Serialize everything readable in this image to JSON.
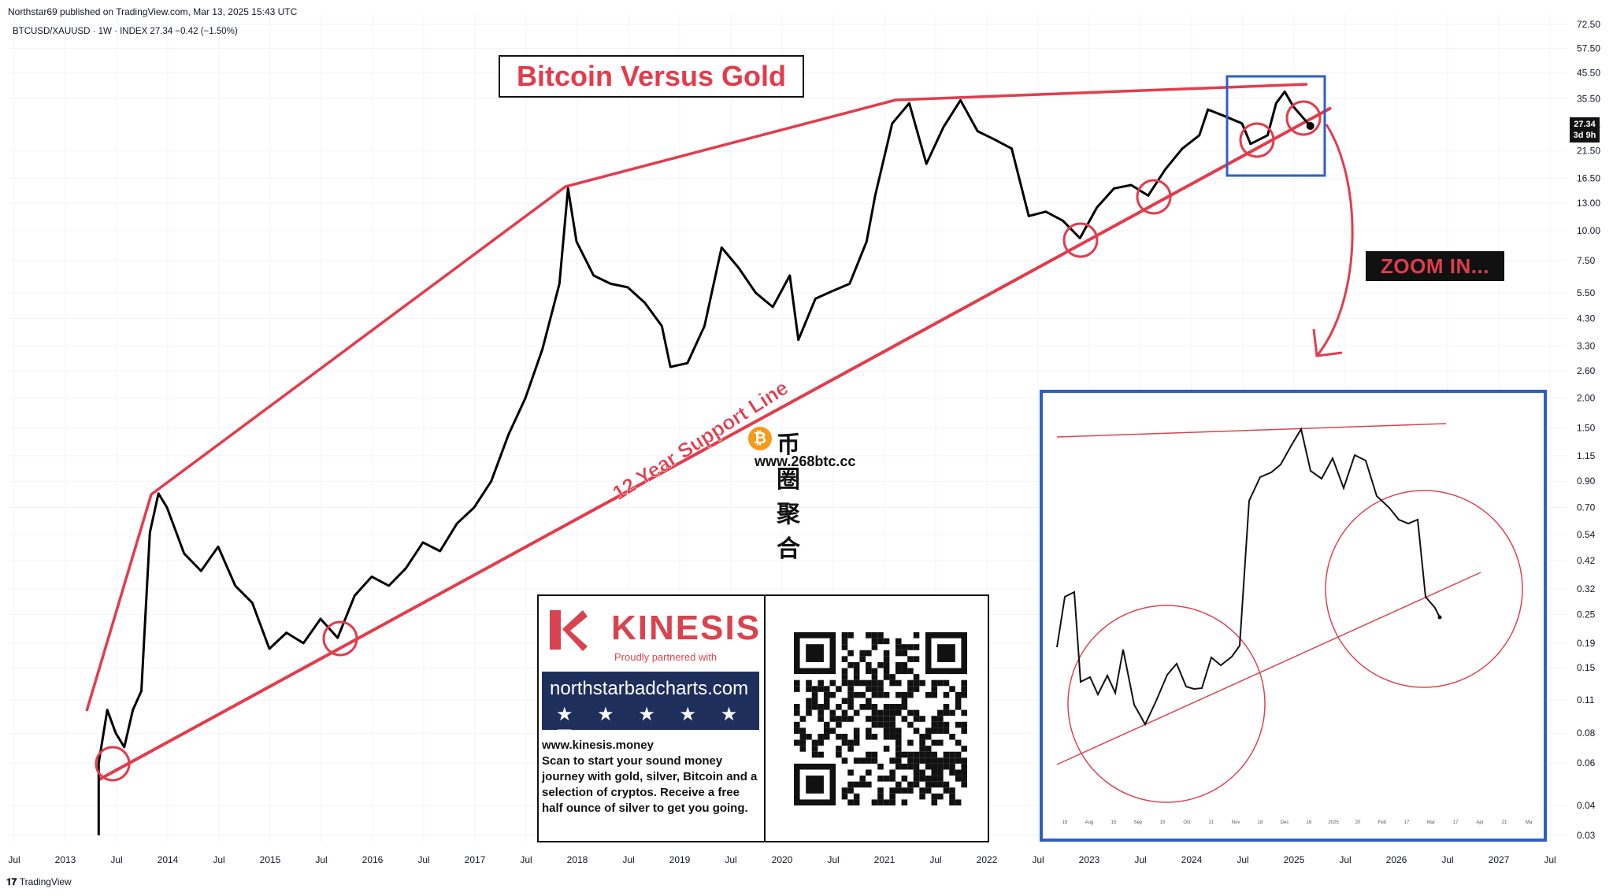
{
  "meta": {
    "published": "Northstar69 published on TradingView.com, Mar 13, 2025 15:43 UTC",
    "symbol_line": "BTCUSD/XAUUSD · 1W · INDEX 27.34 −0.42 (−1.50%)",
    "footer_logo": "TradingView"
  },
  "annotations": {
    "title": "Bitcoin Versus Gold",
    "support_label": "12 Year Support Line",
    "zoom_label": "ZOOM IN...",
    "price_tag_value": "27.34",
    "price_tag_time": "3d 9h"
  },
  "colors": {
    "trendline": "#e23c4c",
    "price": "#000000",
    "highlight_box": "#2e5fc6",
    "zoom_circle": "#d9434f",
    "ad_banner": "#1f2f5c"
  },
  "ad": {
    "brand": "KINESIS",
    "tagline": "Proudly partnered with",
    "banner_url": "northstarbadcharts.com",
    "stars": "★ ★ ★ ★ ★ ☑",
    "website": "www.kinesis.money",
    "body": "Scan to start your sound money journey with gold, silver, Bitcoin and a selection of cryptos. Receive a free half ounce of silver to get you going."
  },
  "watermark": {
    "title": "币圈聚合",
    "url": "www.268btc.cc",
    "coin_icon": "bitcoin-icon"
  },
  "chart_data": {
    "type": "line",
    "title": "Bitcoin Versus Gold",
    "series": [
      {
        "name": "BTCUSD/XAUUSD",
        "scale": "log",
        "points": [
          [
            "2013-05",
            0.03
          ],
          [
            "2013-05",
            0.06
          ],
          [
            "2013-06",
            0.1
          ],
          [
            "2013-07",
            0.08
          ],
          [
            "2013-08",
            0.07
          ],
          [
            "2013-09",
            0.1
          ],
          [
            "2013-10",
            0.12
          ],
          [
            "2013-11",
            0.55
          ],
          [
            "2013-12",
            0.8
          ],
          [
            "2014-01",
            0.7
          ],
          [
            "2014-03",
            0.45
          ],
          [
            "2014-05",
            0.38
          ],
          [
            "2014-07",
            0.48
          ],
          [
            "2014-09",
            0.33
          ],
          [
            "2014-11",
            0.28
          ],
          [
            "2015-01",
            0.18
          ],
          [
            "2015-03",
            0.21
          ],
          [
            "2015-05",
            0.19
          ],
          [
            "2015-07",
            0.24
          ],
          [
            "2015-09",
            0.2
          ],
          [
            "2015-11",
            0.3
          ],
          [
            "2016-01",
            0.36
          ],
          [
            "2016-03",
            0.33
          ],
          [
            "2016-05",
            0.39
          ],
          [
            "2016-07",
            0.5
          ],
          [
            "2016-09",
            0.46
          ],
          [
            "2016-11",
            0.6
          ],
          [
            "2017-01",
            0.7
          ],
          [
            "2017-03",
            0.9
          ],
          [
            "2017-05",
            1.4
          ],
          [
            "2017-07",
            2.0
          ],
          [
            "2017-09",
            3.2
          ],
          [
            "2017-11",
            6.0
          ],
          [
            "2017-12",
            15.0
          ],
          [
            "2018-01",
            9.0
          ],
          [
            "2018-03",
            6.5
          ],
          [
            "2018-05",
            6.0
          ],
          [
            "2018-07",
            5.8
          ],
          [
            "2018-09",
            5.0
          ],
          [
            "2018-11",
            4.0
          ],
          [
            "2018-12",
            2.7
          ],
          [
            "2019-02",
            2.8
          ],
          [
            "2019-04",
            4.0
          ],
          [
            "2019-06",
            8.5
          ],
          [
            "2019-08",
            7.0
          ],
          [
            "2019-10",
            5.5
          ],
          [
            "2019-12",
            4.8
          ],
          [
            "2020-02",
            6.5
          ],
          [
            "2020-03",
            3.5
          ],
          [
            "2020-05",
            5.2
          ],
          [
            "2020-07",
            5.6
          ],
          [
            "2020-09",
            6.0
          ],
          [
            "2020-11",
            9.0
          ],
          [
            "2020-12",
            14.0
          ],
          [
            "2021-02",
            28.0
          ],
          [
            "2021-04",
            34.0
          ],
          [
            "2021-06",
            19.0
          ],
          [
            "2021-08",
            27.0
          ],
          [
            "2021-10",
            35.0
          ],
          [
            "2021-12",
            26.0
          ],
          [
            "2022-02",
            24.0
          ],
          [
            "2022-04",
            22.0
          ],
          [
            "2022-06",
            11.5
          ],
          [
            "2022-08",
            12.0
          ],
          [
            "2022-10",
            11.0
          ],
          [
            "2022-12",
            9.3
          ],
          [
            "2023-02",
            12.5
          ],
          [
            "2023-04",
            15.0
          ],
          [
            "2023-06",
            15.5
          ],
          [
            "2023-08",
            14.0
          ],
          [
            "2023-10",
            18.0
          ],
          [
            "2023-12",
            22.0
          ],
          [
            "2024-02",
            25.0
          ],
          [
            "2024-03",
            32.0
          ],
          [
            "2024-05",
            30.0
          ],
          [
            "2024-07",
            28.0
          ],
          [
            "2024-08",
            23.0
          ],
          [
            "2024-10",
            25.0
          ],
          [
            "2024-11",
            34.0
          ],
          [
            "2024-12",
            38.0
          ],
          [
            "2025-01",
            33.0
          ],
          [
            "2025-02",
            30.0
          ],
          [
            "2025-03",
            27.34
          ]
        ]
      }
    ],
    "xlabel": "",
    "ylabel": "",
    "x_ticks": [
      "Jul",
      "2013",
      "Jul",
      "2014",
      "Jul",
      "2015",
      "Jul",
      "2016",
      "Jul",
      "2017",
      "Jul",
      "2018",
      "Jul",
      "2019",
      "Jul",
      "2020",
      "Jul",
      "2021",
      "Jul",
      "2022",
      "Jul",
      "2023",
      "Jul",
      "2024",
      "Jul",
      "2025",
      "Jul",
      "2026",
      "Jul",
      "2027",
      "Jul"
    ],
    "y_ticks": [
      "72.50",
      "57.50",
      "45.50",
      "35.50",
      "27.34",
      "21.50",
      "16.50",
      "13.00",
      "10.00",
      "7.50",
      "5.50",
      "4.30",
      "3.30",
      "2.60",
      "2.00",
      "1.50",
      "1.15",
      "0.90",
      "0.70",
      "0.54",
      "0.42",
      "0.32",
      "0.25",
      "0.19",
      "0.15",
      "0.11",
      "0.08",
      "0.06",
      "0.04",
      "0.03"
    ],
    "y_scale": "log",
    "grid": true,
    "legend": "none",
    "inset": {
      "x_ticks": [
        "15",
        "Aug",
        "15",
        "Sep",
        "15",
        "Oct",
        "21",
        "Nov",
        "18",
        "Dec",
        "16",
        "2025",
        "20",
        "Feb",
        "17",
        "Mar",
        "17",
        "Apr",
        "21",
        "Ma"
      ]
    }
  }
}
